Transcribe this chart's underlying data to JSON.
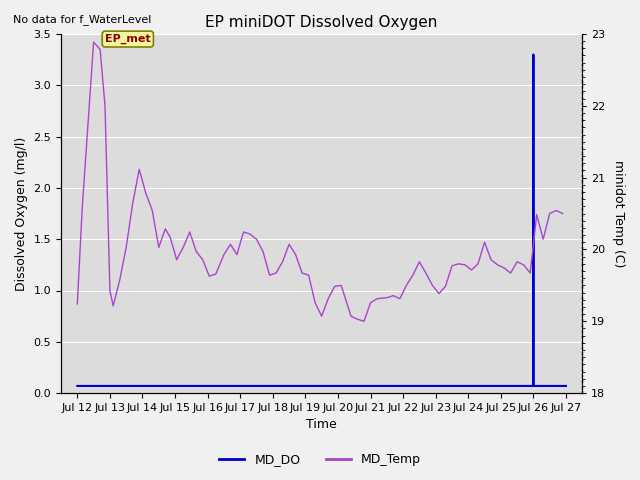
{
  "title": "EP miniDOT Dissolved Oxygen",
  "top_left_text": "No data for f_WaterLevel",
  "annotation_text": "EP_met",
  "xlabel": "Time",
  "ylabel_left": "Dissolved Oxygen (mg/l)",
  "ylabel_right": "minidot Temp (C)",
  "ylim_left": [
    0.0,
    3.5
  ],
  "ylim_right": [
    18.0,
    23.0
  ],
  "legend_labels": [
    "MD_DO",
    "MD_Temp"
  ],
  "md_do_color": "#0000cc",
  "md_temp_color": "#aa44cc",
  "x_tick_labels": [
    "Jul 12",
    "Jul 13",
    "Jul 14",
    "Jul 15",
    "Jul 16",
    "Jul 17",
    "Jul 18",
    "Jul 19",
    "Jul 20",
    "Jul 21",
    "Jul 22",
    "Jul 23",
    "Jul 24",
    "Jul 25",
    "Jul 26",
    "Jul 27"
  ],
  "annotation_color": "#880000",
  "annotation_bg": "#f5f5a0",
  "annotation_edge": "#808000",
  "bg_color": "#dcdcdc",
  "fig_bg": "#f0f0f0",
  "grid_color": "#ffffff",
  "md_temp_x": [
    0.0,
    0.15,
    0.5,
    0.7,
    0.85,
    1.0,
    1.1,
    1.3,
    1.5,
    1.7,
    1.9,
    2.1,
    2.3,
    2.5,
    2.7,
    2.85,
    3.05,
    3.25,
    3.45,
    3.65,
    3.85,
    4.05,
    4.25,
    4.5,
    4.7,
    4.9,
    5.1,
    5.3,
    5.5,
    5.7,
    5.9,
    6.1,
    6.3,
    6.5,
    6.7,
    6.9,
    7.1,
    7.3,
    7.5,
    7.7,
    7.9,
    8.1,
    8.4,
    8.6,
    8.8,
    9.0,
    9.2,
    9.5,
    9.7,
    9.9,
    10.1,
    10.3,
    10.5,
    10.7,
    10.9,
    11.1,
    11.3,
    11.5,
    11.7,
    11.9,
    12.1,
    12.3,
    12.5,
    12.7,
    12.9,
    13.1,
    13.3,
    13.5,
    13.7,
    13.9,
    14.0,
    14.1,
    14.3,
    14.5,
    14.7,
    14.9
  ],
  "md_temp_y": [
    0.87,
    1.8,
    3.42,
    3.35,
    2.8,
    1.0,
    0.85,
    1.1,
    1.42,
    1.85,
    2.18,
    1.95,
    1.78,
    1.42,
    1.6,
    1.52,
    1.3,
    1.42,
    1.57,
    1.38,
    1.3,
    1.14,
    1.16,
    1.35,
    1.45,
    1.35,
    1.57,
    1.55,
    1.5,
    1.38,
    1.15,
    1.17,
    1.28,
    1.45,
    1.35,
    1.17,
    1.15,
    0.88,
    0.75,
    0.92,
    1.04,
    1.05,
    0.75,
    0.72,
    0.7,
    0.88,
    0.92,
    0.93,
    0.95,
    0.92,
    1.05,
    1.15,
    1.28,
    1.17,
    1.05,
    0.97,
    1.04,
    1.24,
    1.26,
    1.25,
    1.2,
    1.26,
    1.47,
    1.3,
    1.25,
    1.22,
    1.17,
    1.28,
    1.25,
    1.17,
    1.45,
    1.74,
    1.5,
    1.75,
    1.78,
    1.75
  ]
}
